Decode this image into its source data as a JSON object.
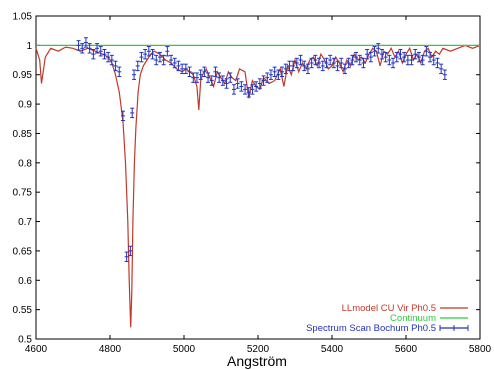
{
  "chart_data": {
    "type": "line",
    "title": "",
    "xlabel": "Angström",
    "ylabel": "",
    "xlim": [
      4600,
      5800
    ],
    "ylim": [
      0.5,
      1.05
    ],
    "xticks": [
      4600,
      4800,
      5000,
      5200,
      5400,
      5600,
      5800
    ],
    "xtick_labels": [
      "4600",
      "4800",
      "5000",
      "5200",
      "5400",
      "5600",
      "5800"
    ],
    "yticks": [
      0.5,
      0.55,
      0.6,
      0.65,
      0.7,
      0.75,
      0.8,
      0.85,
      0.9,
      0.95,
      1.0,
      1.05
    ],
    "ytick_labels": [
      "0.5",
      "0.55",
      "0.6",
      "0.65",
      "0.7",
      "0.75",
      "0.8",
      "0.85",
      "0.9",
      "0.95",
      "1",
      "1.05"
    ],
    "grid": false,
    "legend_position": "bottom-right",
    "series": [
      {
        "name": "LLmodel CU Vir Ph0.5",
        "kind": "line",
        "color": "#c0392b",
        "x": [
          4600,
          4610,
          4615,
          4625,
          4640,
          4660,
          4680,
          4700,
          4720,
          4740,
          4760,
          4780,
          4795,
          4805,
          4815,
          4825,
          4835,
          4842,
          4848,
          4852,
          4856,
          4859,
          4862,
          4866,
          4870,
          4876,
          4882,
          4890,
          4900,
          4910,
          4920,
          4935,
          4950,
          4965,
          4980,
          4995,
          5005,
          5015,
          5025,
          5035,
          5040,
          5045,
          5050,
          5060,
          5070,
          5080,
          5090,
          5100,
          5110,
          5120,
          5130,
          5140,
          5150,
          5165,
          5175,
          5185,
          5195,
          5205,
          5215,
          5230,
          5245,
          5260,
          5270,
          5280,
          5290,
          5300,
          5310,
          5320,
          5330,
          5340,
          5350,
          5360,
          5370,
          5380,
          5390,
          5400,
          5410,
          5420,
          5430,
          5440,
          5450,
          5460,
          5470,
          5480,
          5490,
          5500,
          5510,
          5520,
          5530,
          5540,
          5550,
          5560,
          5570,
          5580,
          5590,
          5600,
          5610,
          5620,
          5630,
          5640,
          5650,
          5660,
          5670,
          5680,
          5690,
          5700,
          5720,
          5740,
          5760,
          5780,
          5800
        ],
        "y": [
          0.995,
          0.975,
          0.935,
          0.98,
          0.995,
          0.99,
          0.997,
          0.995,
          0.99,
          0.995,
          0.99,
          0.985,
          0.98,
          0.97,
          0.95,
          0.92,
          0.87,
          0.8,
          0.7,
          0.6,
          0.52,
          0.58,
          0.7,
          0.8,
          0.86,
          0.92,
          0.95,
          0.965,
          0.975,
          0.985,
          0.99,
          0.985,
          0.975,
          0.97,
          0.96,
          0.955,
          0.96,
          0.955,
          0.95,
          0.93,
          0.89,
          0.94,
          0.95,
          0.96,
          0.945,
          0.93,
          0.955,
          0.945,
          0.935,
          0.955,
          0.945,
          0.94,
          0.96,
          0.955,
          0.91,
          0.94,
          0.93,
          0.925,
          0.945,
          0.935,
          0.94,
          0.96,
          0.93,
          0.965,
          0.95,
          0.975,
          0.955,
          0.97,
          0.96,
          0.975,
          0.98,
          0.965,
          0.985,
          0.975,
          0.96,
          0.965,
          0.98,
          0.97,
          0.955,
          0.975,
          0.965,
          0.985,
          0.975,
          0.98,
          0.97,
          0.985,
          0.995,
          0.99,
          0.965,
          0.99,
          0.985,
          0.995,
          0.98,
          0.99,
          0.97,
          0.985,
          0.995,
          0.975,
          0.985,
          0.97,
          0.99,
          0.995,
          0.98,
          0.99,
          0.985,
          0.995,
          0.99,
          0.995,
          1.0,
          0.995,
          1.0
        ]
      },
      {
        "name": "Continuum",
        "kind": "line",
        "color": "#2ecc40",
        "x": [
          4600,
          5800
        ],
        "y": [
          1.0,
          1.0
        ]
      },
      {
        "name": "Spectrum Scan Bochum Ph0.5",
        "kind": "errorbar",
        "color": "#2233bb",
        "x": [
          4715,
          4725,
          4735,
          4745,
          4755,
          4765,
          4775,
          4785,
          4795,
          4805,
          4815,
          4825,
          4835,
          4845,
          4855,
          4860,
          4865,
          4875,
          4885,
          4895,
          4905,
          4915,
          4925,
          4935,
          4945,
          4955,
          4965,
          4975,
          4985,
          4995,
          5005,
          5015,
          5025,
          5035,
          5045,
          5055,
          5065,
          5075,
          5085,
          5095,
          5105,
          5115,
          5125,
          5135,
          5145,
          5155,
          5165,
          5175,
          5185,
          5195,
          5205,
          5215,
          5225,
          5235,
          5245,
          5255,
          5265,
          5275,
          5285,
          5295,
          5305,
          5315,
          5325,
          5335,
          5345,
          5355,
          5365,
          5375,
          5385,
          5395,
          5405,
          5415,
          5425,
          5435,
          5445,
          5455,
          5465,
          5475,
          5485,
          5495,
          5505,
          5515,
          5525,
          5535,
          5545,
          5555,
          5565,
          5575,
          5585,
          5595,
          5605,
          5615,
          5625,
          5635,
          5645,
          5655,
          5665,
          5675,
          5685,
          5695,
          5705
        ],
        "y": [
          1.0,
          0.995,
          1.005,
          0.995,
          0.985,
          0.995,
          0.99,
          0.985,
          0.98,
          0.975,
          0.965,
          0.955,
          0.88,
          0.64,
          0.65,
          0.885,
          0.95,
          0.965,
          0.98,
          0.985,
          0.99,
          0.985,
          0.975,
          0.98,
          0.975,
          0.99,
          0.975,
          0.97,
          0.965,
          0.96,
          0.96,
          0.955,
          0.945,
          0.945,
          0.95,
          0.955,
          0.945,
          0.94,
          0.955,
          0.945,
          0.94,
          0.935,
          0.945,
          0.925,
          0.935,
          0.93,
          0.925,
          0.92,
          0.925,
          0.93,
          0.935,
          0.94,
          0.945,
          0.95,
          0.955,
          0.95,
          0.955,
          0.96,
          0.965,
          0.965,
          0.97,
          0.975,
          0.965,
          0.96,
          0.97,
          0.975,
          0.97,
          0.965,
          0.97,
          0.975,
          0.97,
          0.965,
          0.97,
          0.96,
          0.97,
          0.975,
          0.98,
          0.975,
          0.97,
          0.985,
          0.98,
          0.99,
          0.995,
          0.985,
          0.98,
          0.975,
          0.97,
          0.98,
          0.985,
          0.98,
          0.975,
          0.975,
          0.985,
          0.98,
          0.975,
          0.99,
          0.98,
          0.975,
          0.97,
          0.96,
          0.95
        ],
        "err": 0.008
      }
    ]
  }
}
